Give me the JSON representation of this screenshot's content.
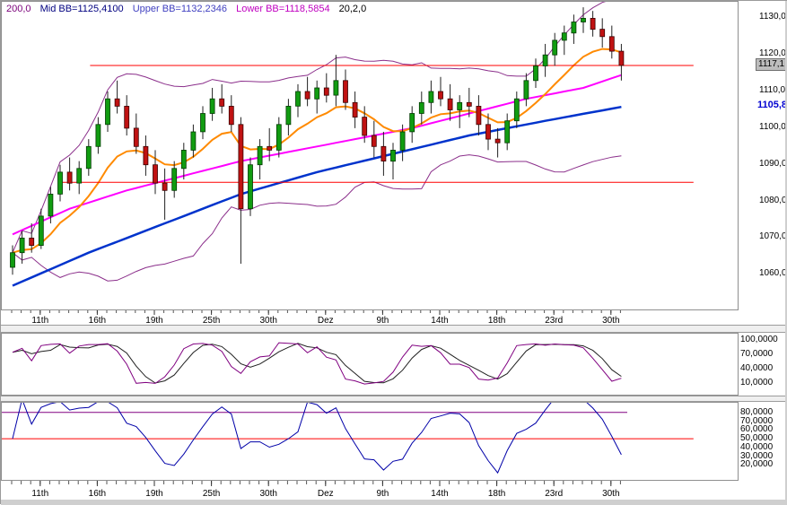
{
  "window": {
    "background": "#ffffff"
  },
  "legend": {
    "ma_label": "200,0",
    "mid_bb": "Mid BB=1125,4100",
    "upper_bb": "Upper BB=1132,2346",
    "lower_bb": "Lower BB=1118,5854",
    "bb_params": "20,2,0",
    "colors": {
      "ma_label": "#7a007a",
      "mid_bb": "#000080",
      "upper_bb": "#4040c0",
      "lower_bb": "#c000c0",
      "bb_params": "#000000"
    }
  },
  "chart_data": {
    "type": "candlestick",
    "x_labels": [
      {
        "i": 3,
        "t": "11th"
      },
      {
        "i": 9,
        "t": "16th"
      },
      {
        "i": 15,
        "t": "19th"
      },
      {
        "i": 21,
        "t": "25th"
      },
      {
        "i": 27,
        "t": "30th"
      },
      {
        "i": 33,
        "t": "Dez"
      },
      {
        "i": 39,
        "t": "9th"
      },
      {
        "i": 45,
        "t": "14th"
      },
      {
        "i": 51,
        "t": "18th"
      },
      {
        "i": 57,
        "t": "23rd"
      },
      {
        "i": 63,
        "t": "30th"
      }
    ],
    "main": {
      "ylim": [
        1050.5,
        1134.5
      ],
      "y_ticks": [
        {
          "v": 1130,
          "t": "1130,0"
        },
        {
          "v": 1120,
          "t": "1120,0"
        },
        {
          "v": 1110,
          "t": "1110,0"
        },
        {
          "v": 1100,
          "t": "1100,0"
        },
        {
          "v": 1090,
          "t": "1090,0"
        },
        {
          "v": 1080,
          "t": "1080,0"
        },
        {
          "v": 1070,
          "t": "1070,0"
        },
        {
          "v": 1060,
          "t": "1060,0"
        }
      ],
      "badges": [
        {
          "v": 1117.1,
          "t": "1117,1",
          "cls": "badge-gray"
        },
        {
          "v": 1105.8,
          "t": "1105,8",
          "cls": "badge-blue"
        }
      ],
      "bb": {
        "period": 20,
        "dev": 2
      },
      "fast_period": 10,
      "hlines": [
        {
          "value": 1117.1,
          "from": 0.12,
          "to": 0.94,
          "color": "#ff0000"
        },
        {
          "value": 1085.2,
          "from": 0.08,
          "to": 0.94,
          "color": "#ff0000"
        }
      ],
      "colors": {
        "up": "#119c11",
        "down": "#c01212",
        "wick": "#222222",
        "band": "#8b2f8b",
        "fast_ma": "#ff8a00",
        "med_ma": "#ff00ff",
        "slow_ma": "#0033cc"
      },
      "magenta_points": [
        [
          0,
          1071
        ],
        [
          6,
          1078
        ],
        [
          12,
          1083
        ],
        [
          18,
          1087
        ],
        [
          24,
          1091
        ],
        [
          30,
          1094
        ],
        [
          36,
          1097
        ],
        [
          42,
          1100
        ],
        [
          48,
          1104
        ],
        [
          54,
          1108
        ],
        [
          60,
          1111
        ],
        [
          64,
          1114.5
        ]
      ],
      "blue_points": [
        [
          0,
          1057
        ],
        [
          8,
          1066
        ],
        [
          16,
          1074
        ],
        [
          24,
          1082
        ],
        [
          32,
          1088
        ],
        [
          40,
          1093
        ],
        [
          48,
          1098
        ],
        [
          56,
          1102
        ],
        [
          64,
          1105.8
        ]
      ],
      "candles": [
        [
          1062,
          1068,
          1060,
          1066
        ],
        [
          1066,
          1072,
          1063,
          1070
        ],
        [
          1070,
          1074,
          1066,
          1068
        ],
        [
          1068,
          1078,
          1067,
          1076
        ],
        [
          1076,
          1084,
          1074,
          1082
        ],
        [
          1082,
          1090,
          1080,
          1088
        ],
        [
          1088,
          1092,
          1083,
          1085
        ],
        [
          1085,
          1091,
          1082,
          1089
        ],
        [
          1089,
          1097,
          1087,
          1095
        ],
        [
          1095,
          1103,
          1093,
          1101
        ],
        [
          1101,
          1110,
          1099,
          1108
        ],
        [
          1108,
          1113,
          1104,
          1106
        ],
        [
          1106,
          1109,
          1098,
          1100
        ],
        [
          1100,
          1104,
          1093,
          1095
        ],
        [
          1095,
          1098,
          1087,
          1090
        ],
        [
          1090,
          1094,
          1082,
          1085
        ],
        [
          1085,
          1089,
          1075,
          1083
        ],
        [
          1083,
          1091,
          1081,
          1089
        ],
        [
          1089,
          1096,
          1086,
          1094
        ],
        [
          1094,
          1101,
          1092,
          1099
        ],
        [
          1099,
          1106,
          1097,
          1104
        ],
        [
          1104,
          1111,
          1102,
          1108
        ],
        [
          1108,
          1112,
          1104,
          1106
        ],
        [
          1106,
          1109,
          1099,
          1101
        ],
        [
          1101,
          1103,
          1063,
          1078
        ],
        [
          1078,
          1092,
          1076,
          1090
        ],
        [
          1090,
          1097,
          1086,
          1095
        ],
        [
          1095,
          1100,
          1091,
          1094
        ],
        [
          1094,
          1103,
          1092,
          1101
        ],
        [
          1101,
          1108,
          1098,
          1106
        ],
        [
          1106,
          1112,
          1103,
          1110
        ],
        [
          1110,
          1114,
          1106,
          1108
        ],
        [
          1108,
          1113,
          1104,
          1111
        ],
        [
          1111,
          1115,
          1107,
          1109
        ],
        [
          1109,
          1120,
          1106,
          1113
        ],
        [
          1113,
          1116,
          1105,
          1107
        ],
        [
          1107,
          1110,
          1100,
          1103
        ],
        [
          1103,
          1106,
          1096,
          1098
        ],
        [
          1098,
          1102,
          1092,
          1095
        ],
        [
          1095,
          1099,
          1087,
          1091
        ],
        [
          1091,
          1096,
          1086,
          1094
        ],
        [
          1094,
          1101,
          1091,
          1099
        ],
        [
          1099,
          1106,
          1096,
          1104
        ],
        [
          1104,
          1110,
          1101,
          1107
        ],
        [
          1107,
          1113,
          1104,
          1110
        ],
        [
          1110,
          1114,
          1106,
          1108
        ],
        [
          1108,
          1112,
          1102,
          1105
        ],
        [
          1105,
          1109,
          1100,
          1107
        ],
        [
          1107,
          1111,
          1103,
          1106
        ],
        [
          1106,
          1109,
          1098,
          1101
        ],
        [
          1101,
          1104,
          1094,
          1097
        ],
        [
          1097,
          1100,
          1092,
          1096
        ],
        [
          1096,
          1104,
          1094,
          1102
        ],
        [
          1102,
          1110,
          1100,
          1108
        ],
        [
          1108,
          1115,
          1106,
          1113
        ],
        [
          1113,
          1119,
          1111,
          1117
        ],
        [
          1117,
          1123,
          1114,
          1120
        ],
        [
          1120,
          1126,
          1117,
          1124
        ],
        [
          1124,
          1128,
          1120,
          1126
        ],
        [
          1126,
          1131,
          1123,
          1129
        ],
        [
          1129,
          1133,
          1126,
          1130
        ],
        [
          1130,
          1132,
          1125,
          1127
        ],
        [
          1127,
          1130,
          1122,
          1125
        ],
        [
          1125,
          1128,
          1119,
          1121
        ],
        [
          1121,
          1123,
          1113,
          1117.1
        ]
      ]
    },
    "stochastic": {
      "period": 5,
      "smooth": 3,
      "ylim": [
        -14,
        114
      ],
      "y_ticks": [
        {
          "v": 100,
          "t": "100,0000"
        },
        {
          "v": 70,
          "t": "70,0000"
        },
        {
          "v": 40,
          "t": "40,0000"
        },
        {
          "v": 10,
          "t": "10,0000"
        }
      ],
      "colors": {
        "k": "#800080",
        "d": "#202020"
      }
    },
    "rsi": {
      "period": 7,
      "ylim": [
        3,
        91
      ],
      "y_ticks": [
        {
          "v": 80,
          "t": "80,0000"
        },
        {
          "v": 70,
          "t": "70,0000"
        },
        {
          "v": 60,
          "t": "60,0000"
        },
        {
          "v": 50,
          "t": "50,0000"
        },
        {
          "v": 40,
          "t": "40,0000"
        },
        {
          "v": 30,
          "t": "30,0000"
        },
        {
          "v": 20,
          "t": "20,0000"
        }
      ],
      "hlines": [
        {
          "v": 80,
          "to": 0.85,
          "color": "#800080"
        },
        {
          "v": 50,
          "to": 0.94,
          "color": "#ff0000"
        }
      ],
      "color": "#0000a8"
    }
  }
}
